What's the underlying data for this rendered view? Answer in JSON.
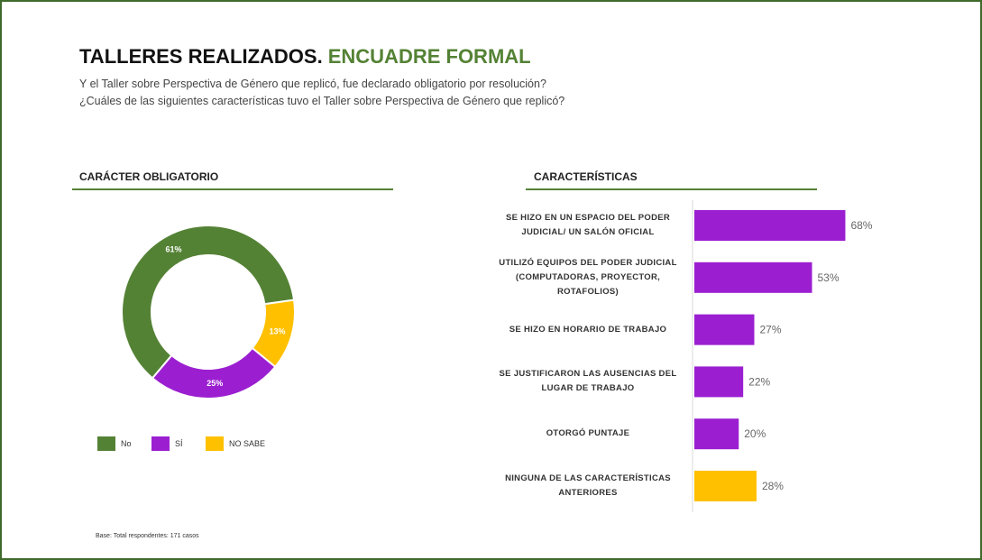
{
  "header": {
    "title": "TALLERES REALIZADOS.",
    "title_highlight": "ENCUADRE FORMAL",
    "subtitle_lines": [
      "Y el Taller sobre Perspectiva de Género que replicó, fue declarado obligatorio por resolución?",
      "¿Cuáles de las siguientes características tuvo el Taller sobre Perspectiva de Género que replicó?"
    ]
  },
  "chart_data": [
    {
      "type": "donut",
      "title": "CARÁCTER OBLIGATORIO",
      "categories": [
        "No",
        "SÍ",
        "NO SABE"
      ],
      "values": [
        61,
        25,
        13
      ],
      "value_labels": [
        "61%",
        "25%",
        "13%"
      ],
      "colors": [
        "#548235",
        "#9b1fd1",
        "#ffc000"
      ],
      "legend": "bottom"
    },
    {
      "type": "hbar",
      "title": "CARACTERÍSTICAS",
      "categories": [
        "SE HIZO EN UN ESPACIO DEL PODER JUDICIAL/ UN SALÓN OFICIAL",
        "UTILIZÓ EQUIPOS DEL PODER JUDICIAL (COMPUTADORAS, PROYECTOR, ROTAFOLIOS)",
        "SE HIZO EN HORARIO DE TRABAJO",
        "SE JUSTIFICARON LAS AUSENCIAS DEL LUGAR DE TRABAJO",
        "OTORGÓ PUNTAJE",
        "NINGUNA DE LAS CARACTERÍSTICAS ANTERIORES"
      ],
      "values": [
        68,
        53,
        27,
        22,
        20,
        28
      ],
      "value_labels": [
        "68%",
        "53%",
        "27%",
        "22%",
        "20%",
        "28%"
      ],
      "colors": [
        "#9b1fd1",
        "#9b1fd1",
        "#9b1fd1",
        "#9b1fd1",
        "#9b1fd1",
        "#ffc000"
      ],
      "xlim": [
        0,
        80
      ]
    }
  ],
  "footnote": "Base: Total respondentes: 171 casos"
}
